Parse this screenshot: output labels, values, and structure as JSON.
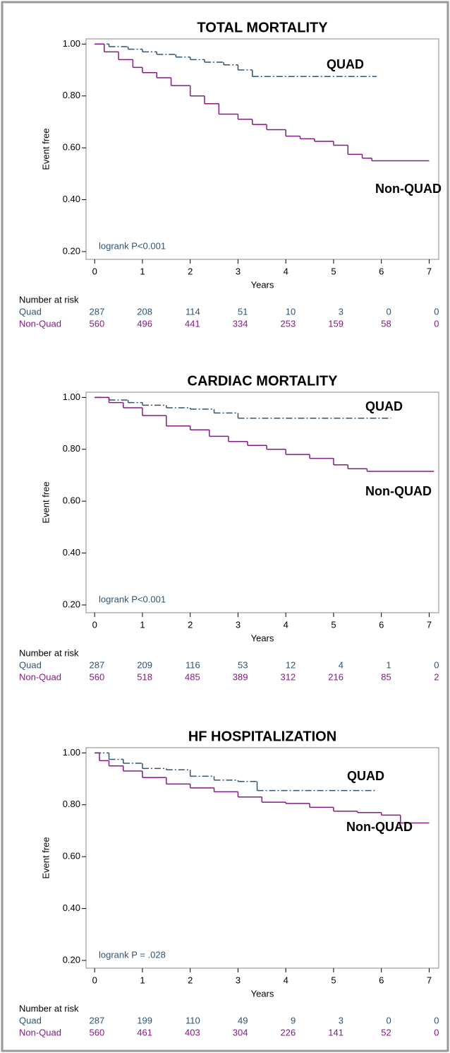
{
  "chart_data": [
    {
      "type": "step",
      "title": "TOTAL MORTALITY",
      "ylabel": "Event free",
      "xlabel": "Years",
      "xlim": [
        -0.18,
        7.2
      ],
      "ylim": [
        0.17,
        1.02
      ],
      "xticks": [
        0,
        1,
        2,
        3,
        4,
        5,
        6,
        7
      ],
      "yticks": [
        {
          "value": 0.2,
          "label": "0.20"
        },
        {
          "value": 0.4,
          "label": "0.40"
        },
        {
          "value": 0.6,
          "label": "0.60"
        },
        {
          "value": 0.8,
          "label": "0.80"
        },
        {
          "value": 1,
          "label": "1.00"
        }
      ],
      "annotation": "logrank P<0.001",
      "series": [
        {
          "name": "QUAD",
          "color": "#2e5574",
          "x": [
            0,
            0.3,
            0.7,
            1,
            1.3,
            1.7,
            2,
            2.3,
            2.7,
            3,
            3.3,
            5.9
          ],
          "values": [
            1,
            0.99,
            0.98,
            0.97,
            0.96,
            0.95,
            0.94,
            0.93,
            0.92,
            0.9,
            0.875,
            0.875
          ]
        },
        {
          "name": "Non-QUAD",
          "color": "#861a86",
          "x": [
            0,
            0.2,
            0.5,
            0.8,
            1,
            1.3,
            1.6,
            2,
            2.3,
            2.6,
            3,
            3.3,
            3.6,
            4,
            4.3,
            4.6,
            5,
            5.3,
            5.6,
            5.8,
            7
          ],
          "values": [
            1,
            0.97,
            0.94,
            0.91,
            0.89,
            0.87,
            0.84,
            0.8,
            0.77,
            0.73,
            0.71,
            0.69,
            0.67,
            0.645,
            0.635,
            0.625,
            0.61,
            0.575,
            0.56,
            0.55,
            0.55
          ]
        }
      ],
      "risk_table": {
        "title": "Number at risk",
        "rows": [
          {
            "name": "Quad",
            "values": [
              287,
              208,
              114,
              51,
              10,
              3,
              0,
              0
            ]
          },
          {
            "name": "Non-Quad",
            "values": [
              560,
              496,
              441,
              334,
              253,
              159,
              58,
              0
            ]
          }
        ]
      }
    },
    {
      "type": "step",
      "title": "CARDIAC MORTALITY",
      "ylabel": "Event free",
      "xlabel": "Years",
      "xlim": [
        -0.18,
        7.2
      ],
      "ylim": [
        0.17,
        1.02
      ],
      "xticks": [
        0,
        1,
        2,
        3,
        4,
        5,
        6,
        7
      ],
      "yticks": [
        {
          "value": 0.2,
          "label": "0.20"
        },
        {
          "value": 0.4,
          "label": "0.40"
        },
        {
          "value": 0.6,
          "label": "0.60"
        },
        {
          "value": 0.8,
          "label": "0.80"
        },
        {
          "value": 1,
          "label": "1.00"
        }
      ],
      "annotation": "logrank P<0.001",
      "series": [
        {
          "name": "QUAD",
          "color": "#2e5574",
          "x": [
            0,
            0.3,
            0.7,
            1,
            1.5,
            2,
            2.5,
            3,
            6.2
          ],
          "values": [
            1,
            0.99,
            0.98,
            0.97,
            0.96,
            0.955,
            0.94,
            0.92,
            0.92
          ]
        },
        {
          "name": "Non-QUAD",
          "color": "#861a86",
          "x": [
            0,
            0.3,
            0.6,
            1,
            1.5,
            2,
            2.4,
            2.8,
            3.2,
            3.6,
            4,
            4.5,
            5,
            5.3,
            5.7,
            7.1
          ],
          "values": [
            1,
            0.98,
            0.96,
            0.93,
            0.89,
            0.875,
            0.85,
            0.83,
            0.815,
            0.8,
            0.78,
            0.765,
            0.74,
            0.725,
            0.715,
            0.715
          ]
        }
      ],
      "risk_table": {
        "title": "Number at risk",
        "rows": [
          {
            "name": "Quad",
            "values": [
              287,
              209,
              116,
              53,
              12,
              4,
              1,
              0
            ]
          },
          {
            "name": "Non-Quad",
            "values": [
              560,
              518,
              485,
              389,
              312,
              216,
              85,
              2
            ]
          }
        ]
      }
    },
    {
      "type": "step",
      "title": "HF HOSPITALIZATION",
      "ylabel": "Event free",
      "xlabel": "Years",
      "xlim": [
        -0.18,
        7.2
      ],
      "ylim": [
        0.17,
        1.02
      ],
      "xticks": [
        0,
        1,
        2,
        3,
        4,
        5,
        6,
        7
      ],
      "yticks": [
        {
          "value": 0.2,
          "label": "0.20"
        },
        {
          "value": 0.4,
          "label": "0.40"
        },
        {
          "value": 0.6,
          "label": "0.60"
        },
        {
          "value": 0.8,
          "label": "0.80"
        },
        {
          "value": 1,
          "label": "1.00"
        }
      ],
      "annotation": "logrank P = .028",
      "series": [
        {
          "name": "QUAD",
          "color": "#2e5574",
          "x": [
            0,
            0.3,
            0.6,
            1,
            1.5,
            2,
            2.5,
            3,
            3.4,
            5.9
          ],
          "values": [
            1,
            0.975,
            0.96,
            0.94,
            0.935,
            0.91,
            0.895,
            0.89,
            0.855,
            0.855
          ]
        },
        {
          "name": "Non-QUAD",
          "color": "#861a86",
          "x": [
            0,
            0.1,
            0.3,
            0.6,
            1,
            1.5,
            2,
            2.5,
            3,
            3.5,
            4,
            4.5,
            5,
            5.5,
            6,
            6.4,
            7
          ],
          "values": [
            1,
            0.97,
            0.95,
            0.93,
            0.905,
            0.88,
            0.865,
            0.85,
            0.83,
            0.81,
            0.805,
            0.79,
            0.775,
            0.77,
            0.76,
            0.73,
            0.73
          ]
        }
      ],
      "risk_table": {
        "title": "Number at risk",
        "rows": [
          {
            "name": "Quad",
            "values": [
              287,
              199,
              110,
              49,
              9,
              3,
              0,
              0
            ]
          },
          {
            "name": "Non-Quad",
            "values": [
              560,
              461,
              403,
              304,
              226,
              141,
              52,
              0
            ]
          }
        ]
      }
    }
  ]
}
